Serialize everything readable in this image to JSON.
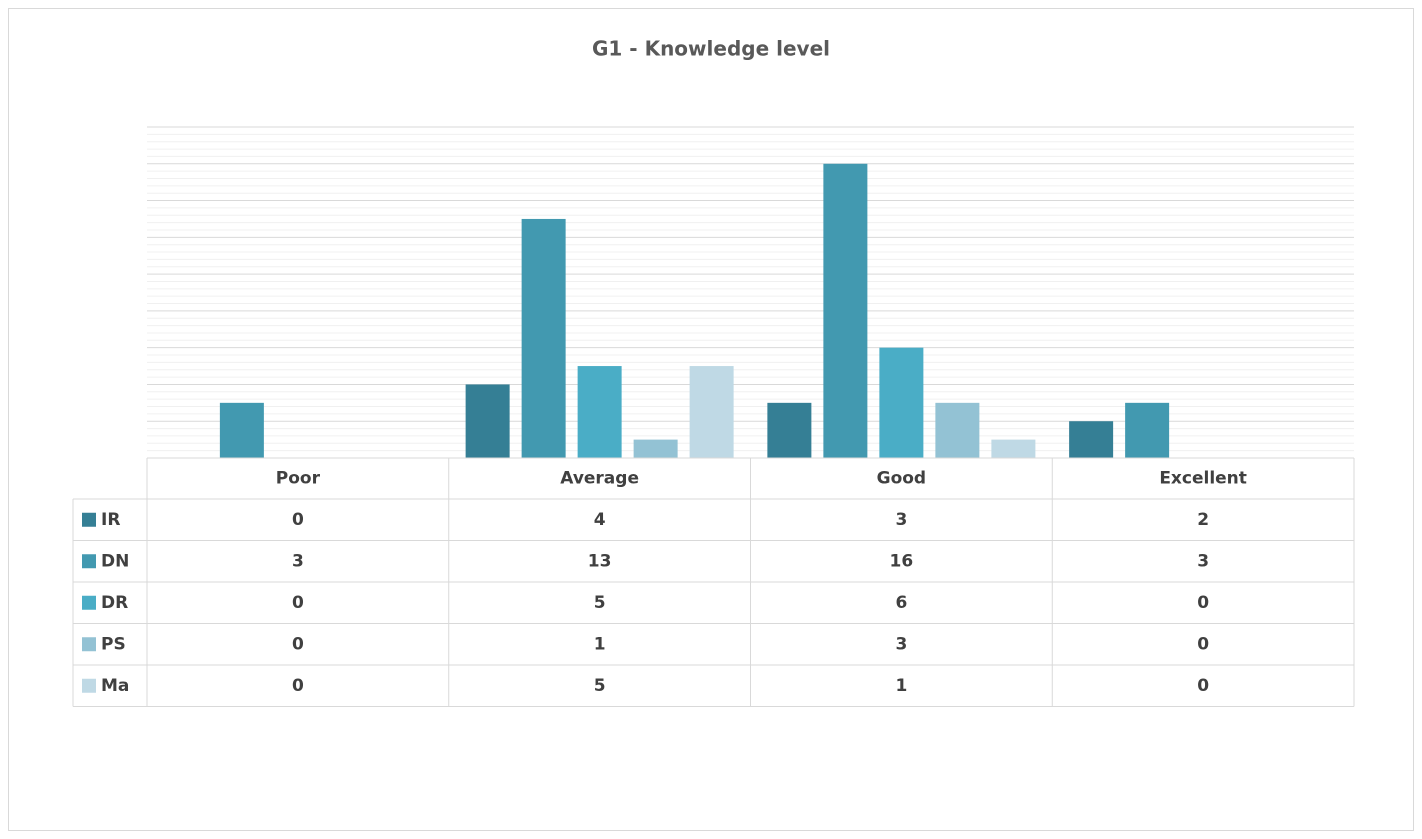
{
  "chart_data": {
    "type": "bar",
    "title": "G1 - Knowledge level",
    "categories": [
      "Poor",
      "Average",
      "Good",
      "Excellent"
    ],
    "series": [
      {
        "name": "IR",
        "color": "#357f95",
        "values": [
          0,
          4,
          3,
          2
        ]
      },
      {
        "name": "DN",
        "color": "#4299b0",
        "values": [
          3,
          13,
          16,
          3
        ]
      },
      {
        "name": "DR",
        "color": "#4aadc6",
        "values": [
          0,
          5,
          6,
          0
        ]
      },
      {
        "name": "PS",
        "color": "#93c2d4",
        "values": [
          0,
          1,
          3,
          0
        ]
      },
      {
        "name": "Ma",
        "color": "#bfd9e5",
        "values": [
          0,
          5,
          1,
          0
        ]
      }
    ],
    "ylim": [
      0,
      18
    ],
    "yticks": [
      0,
      2,
      4,
      6,
      8,
      10,
      12,
      14,
      16,
      18
    ],
    "grid": true,
    "legend": "table"
  }
}
